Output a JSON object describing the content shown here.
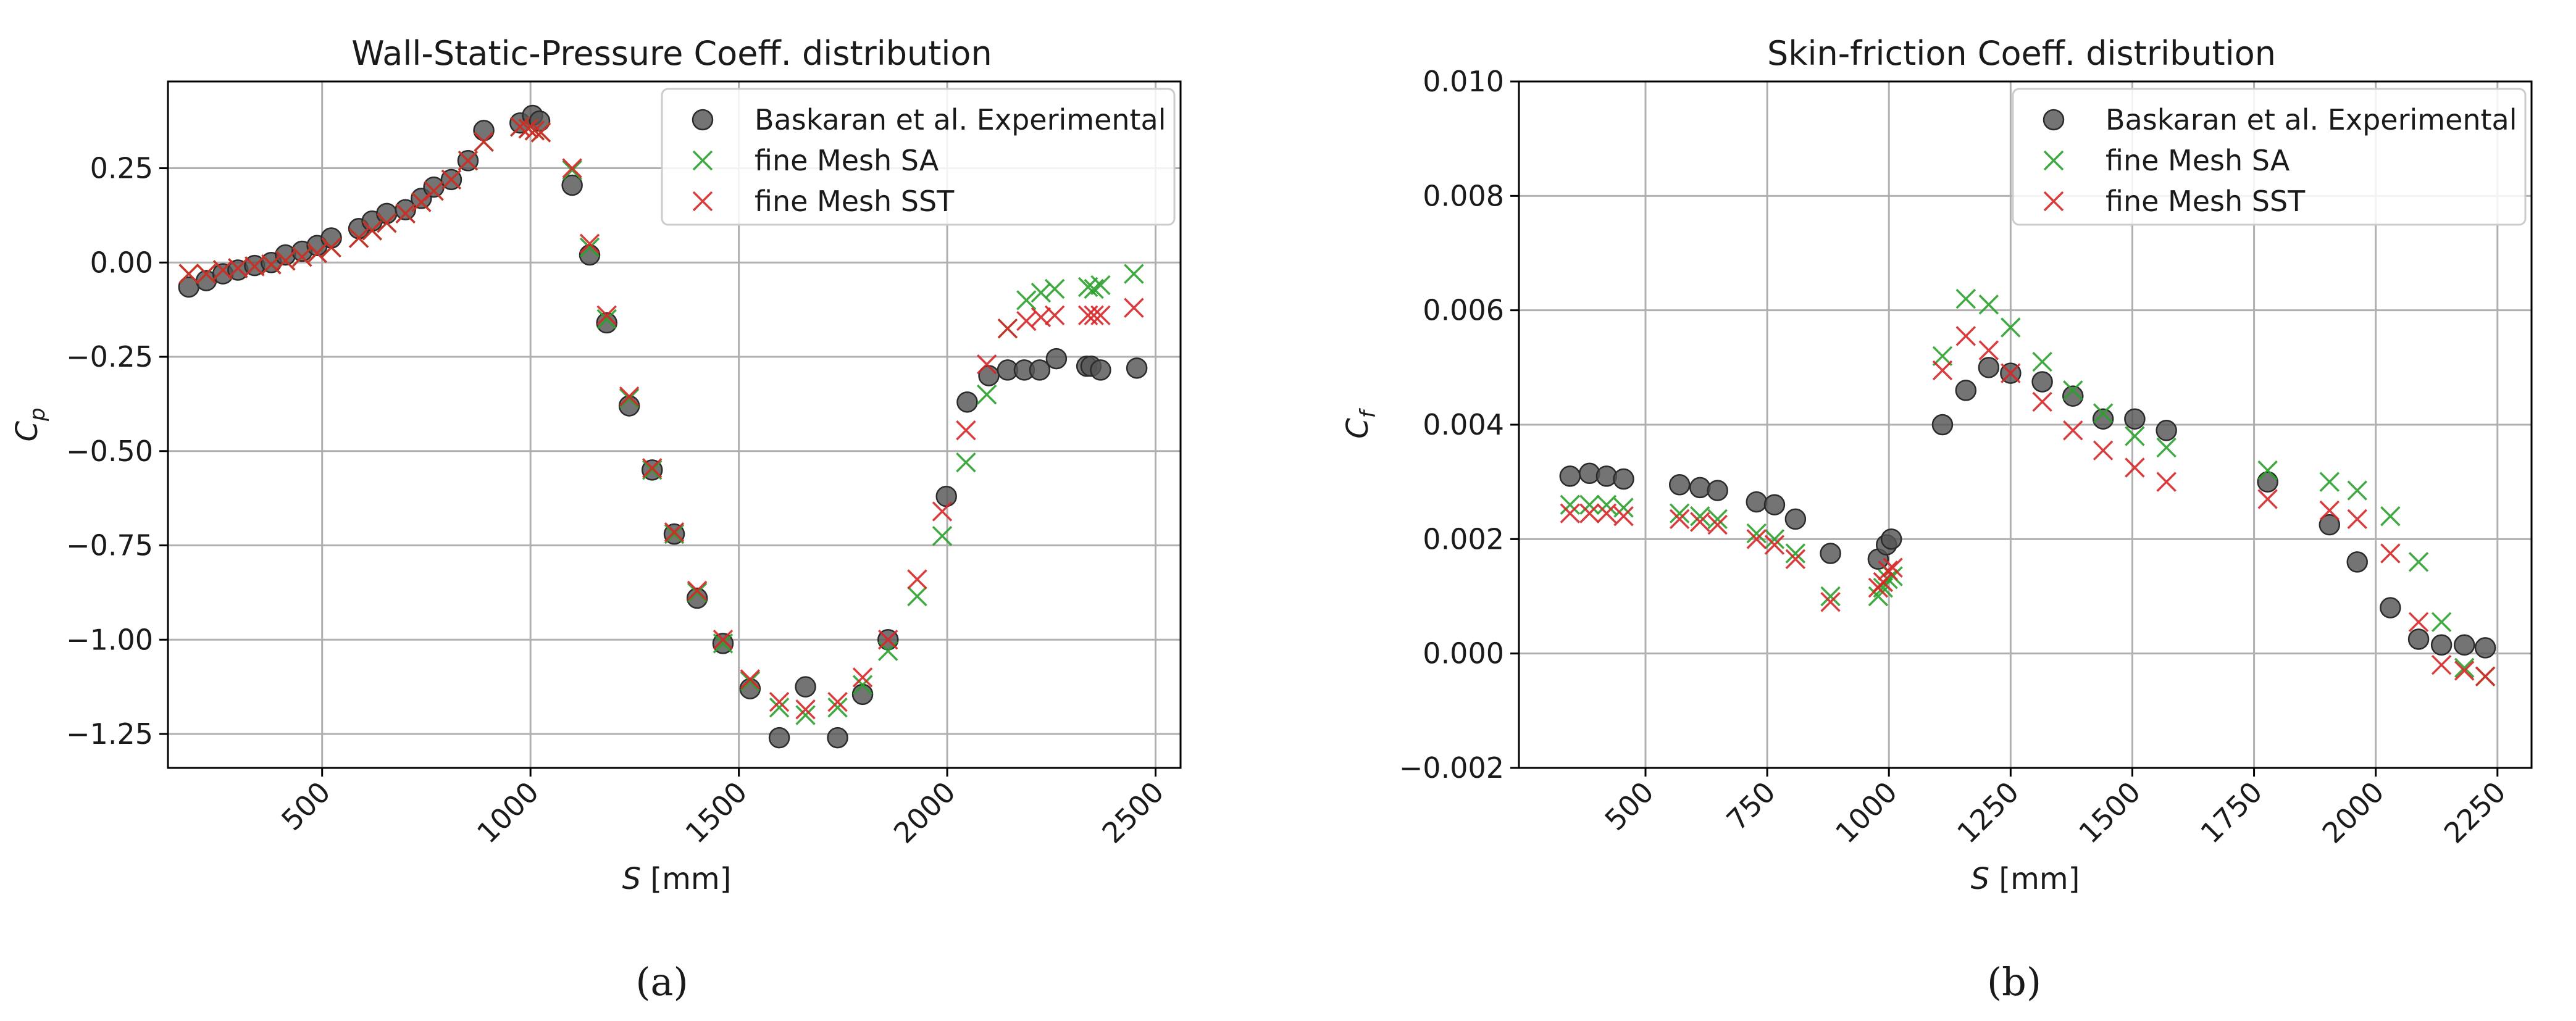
{
  "chart_data": [
    {
      "type": "scatter",
      "title": "Wall-Static-Pressure Coeff. distribution",
      "xlabel": "S [mm]",
      "ylabel": "C_p",
      "xlim": [
        130,
        2560
      ],
      "ylim": [
        -1.34,
        0.48
      ],
      "xticks": [
        500,
        1000,
        1500,
        2000,
        2500
      ],
      "xtick_labels": [
        "500",
        "1000",
        "1500",
        "2000",
        "2500"
      ],
      "yticks": [
        0.25,
        0.0,
        -0.25,
        -0.5,
        -0.75,
        -1.0,
        -1.25
      ],
      "ytick_labels": [
        "0.25",
        "0.00",
        "−0.25",
        "−0.50",
        "−0.75",
        "−1.00",
        "−1.25"
      ],
      "grid": true,
      "legend_position": "top-right",
      "sublabel": "(a)",
      "series": [
        {
          "name": "Baskaran et al. Experimental",
          "marker": "circle",
          "color": "#555555",
          "x": [
            180,
            222,
            262,
            298,
            338,
            378,
            412,
            452,
            488,
            522,
            588,
            620,
            655,
            700,
            738,
            768,
            810,
            850,
            888,
            975,
            1005,
            1022,
            1100,
            1142,
            1183,
            1237,
            1292,
            1345,
            1400,
            1462,
            1527,
            1597,
            1660,
            1737,
            1797,
            1858,
            1998,
            2048,
            2100,
            2145,
            2185,
            2222,
            2262,
            2335,
            2345,
            2368,
            2455
          ],
          "y": [
            -0.065,
            -0.048,
            -0.03,
            -0.02,
            -0.008,
            0.0,
            0.02,
            0.03,
            0.045,
            0.065,
            0.09,
            0.11,
            0.13,
            0.14,
            0.17,
            0.2,
            0.22,
            0.27,
            0.35,
            0.37,
            0.39,
            0.375,
            0.205,
            0.02,
            -0.16,
            -0.38,
            -0.55,
            -0.72,
            -0.89,
            -1.01,
            -1.13,
            -1.26,
            -1.125,
            -1.26,
            -1.145,
            -1.0,
            -0.62,
            -0.37,
            -0.3,
            -0.285,
            -0.285,
            -0.285,
            -0.255,
            -0.275,
            -0.275,
            -0.285,
            -0.28
          ]
        },
        {
          "name": "fine Mesh SA",
          "marker": "x",
          "color": "#2ca02c",
          "x": [
            180,
            222,
            262,
            298,
            338,
            378,
            412,
            452,
            488,
            522,
            588,
            620,
            655,
            700,
            738,
            768,
            810,
            850,
            888,
            975,
            995,
            1010,
            1025,
            1100,
            1142,
            1183,
            1237,
            1292,
            1345,
            1400,
            1462,
            1527,
            1597,
            1660,
            1737,
            1797,
            1858,
            1928,
            1988,
            2045,
            2095,
            2145,
            2190,
            2225,
            2258,
            2338,
            2352,
            2368,
            2448
          ],
          "y": [
            -0.03,
            -0.03,
            -0.02,
            -0.015,
            -0.01,
            -0.005,
            0.005,
            0.015,
            0.025,
            0.04,
            0.065,
            0.085,
            0.105,
            0.13,
            0.16,
            0.19,
            0.22,
            0.27,
            0.32,
            0.36,
            0.355,
            0.35,
            0.345,
            0.245,
            0.04,
            -0.15,
            -0.36,
            -0.55,
            -0.72,
            -0.875,
            -1.01,
            -1.11,
            -1.18,
            -1.2,
            -1.18,
            -1.12,
            -1.03,
            -0.885,
            -0.725,
            -0.53,
            -0.35,
            -0.175,
            -0.1,
            -0.08,
            -0.07,
            -0.065,
            -0.07,
            -0.06,
            -0.03
          ]
        },
        {
          "name": "fine Mesh SST",
          "marker": "x",
          "color": "#d62728",
          "x": [
            180,
            222,
            262,
            298,
            338,
            378,
            412,
            452,
            488,
            522,
            588,
            620,
            655,
            700,
            738,
            768,
            810,
            850,
            888,
            975,
            995,
            1010,
            1025,
            1100,
            1142,
            1183,
            1237,
            1292,
            1345,
            1400,
            1462,
            1527,
            1597,
            1660,
            1737,
            1797,
            1858,
            1928,
            1988,
            2045,
            2095,
            2145,
            2190,
            2225,
            2258,
            2338,
            2352,
            2368,
            2448
          ],
          "y": [
            -0.03,
            -0.03,
            -0.02,
            -0.015,
            -0.01,
            -0.005,
            0.005,
            0.015,
            0.025,
            0.04,
            0.065,
            0.085,
            0.105,
            0.13,
            0.16,
            0.19,
            0.22,
            0.27,
            0.32,
            0.36,
            0.355,
            0.35,
            0.345,
            0.25,
            0.05,
            -0.14,
            -0.355,
            -0.545,
            -0.715,
            -0.87,
            -1.0,
            -1.105,
            -1.165,
            -1.185,
            -1.165,
            -1.1,
            -1.0,
            -0.84,
            -0.66,
            -0.445,
            -0.27,
            -0.175,
            -0.155,
            -0.145,
            -0.14,
            -0.14,
            -0.14,
            -0.14,
            -0.12
          ]
        }
      ]
    },
    {
      "type": "scatter",
      "title": "Skin-friction Coeff. distribution",
      "xlabel": "S [mm]",
      "ylabel": "C_f",
      "xlim": [
        240,
        2320
      ],
      "ylim": [
        -0.002,
        0.01
      ],
      "xticks": [
        500,
        750,
        1000,
        1250,
        1500,
        1750,
        2000,
        2250
      ],
      "xtick_labels": [
        "500",
        "750",
        "1000",
        "1250",
        "1500",
        "1750",
        "2000",
        "2250"
      ],
      "yticks": [
        0.01,
        0.008,
        0.006,
        0.004,
        0.002,
        0.0,
        -0.002
      ],
      "ytick_labels": [
        "0.010",
        "0.008",
        "0.006",
        "0.004",
        "0.002",
        "0.000",
        "−0.002"
      ],
      "grid": true,
      "legend_position": "top-right",
      "sublabel": "(b)",
      "series": [
        {
          "name": "Baskaran et al. Experimental",
          "marker": "circle",
          "color": "#555555",
          "x": [
            345,
            385,
            420,
            455,
            570,
            612,
            648,
            728,
            765,
            808,
            880,
            978,
            995,
            1005,
            1110,
            1158,
            1205,
            1250,
            1315,
            1378,
            1440,
            1505,
            1570,
            1778,
            1905,
            1962,
            2030,
            2088,
            2135,
            2182,
            2225
          ],
          "y": [
            0.0031,
            0.00315,
            0.0031,
            0.00305,
            0.00295,
            0.0029,
            0.00285,
            0.00265,
            0.0026,
            0.00235,
            0.00175,
            0.00165,
            0.0019,
            0.002,
            0.004,
            0.0046,
            0.005,
            0.0049,
            0.00475,
            0.0045,
            0.0041,
            0.0041,
            0.0039,
            0.003,
            0.00225,
            0.0016,
            0.0008,
            0.00025,
            0.00015,
            0.00015,
            0.0001
          ]
        },
        {
          "name": "fine Mesh SA",
          "marker": "x",
          "color": "#2ca02c",
          "x": [
            345,
            385,
            420,
            455,
            570,
            612,
            648,
            728,
            765,
            808,
            880,
            978,
            988,
            998,
            1008,
            1110,
            1158,
            1205,
            1250,
            1315,
            1378,
            1440,
            1505,
            1570,
            1778,
            1905,
            1962,
            2030,
            2088,
            2135,
            2182,
            2225
          ],
          "y": [
            0.0026,
            0.0026,
            0.0026,
            0.00255,
            0.00245,
            0.0024,
            0.00235,
            0.0021,
            0.002,
            0.00175,
            0.001,
            0.001,
            0.00115,
            0.0013,
            0.00135,
            0.0052,
            0.0062,
            0.0061,
            0.0057,
            0.0051,
            0.0046,
            0.0042,
            0.0038,
            0.0036,
            0.0032,
            0.003,
            0.00285,
            0.0024,
            0.0016,
            0.00055,
            -0.00025,
            -0.0004
          ]
        },
        {
          "name": "fine Mesh SST",
          "marker": "x",
          "color": "#d62728",
          "x": [
            345,
            385,
            420,
            455,
            570,
            612,
            648,
            728,
            765,
            808,
            880,
            978,
            988,
            998,
            1008,
            1110,
            1158,
            1205,
            1250,
            1315,
            1378,
            1440,
            1505,
            1570,
            1778,
            1905,
            1962,
            2030,
            2088,
            2135,
            2182,
            2225
          ],
          "y": [
            0.00245,
            0.00245,
            0.00245,
            0.0024,
            0.00235,
            0.0023,
            0.00225,
            0.002,
            0.0019,
            0.00165,
            0.0009,
            0.00115,
            0.00125,
            0.00145,
            0.0015,
            0.00495,
            0.00555,
            0.0053,
            0.0049,
            0.0044,
            0.0039,
            0.00355,
            0.00325,
            0.003,
            0.0027,
            0.0025,
            0.00235,
            0.00175,
            0.00055,
            -0.0002,
            -0.0003,
            -0.0004
          ]
        }
      ]
    }
  ]
}
